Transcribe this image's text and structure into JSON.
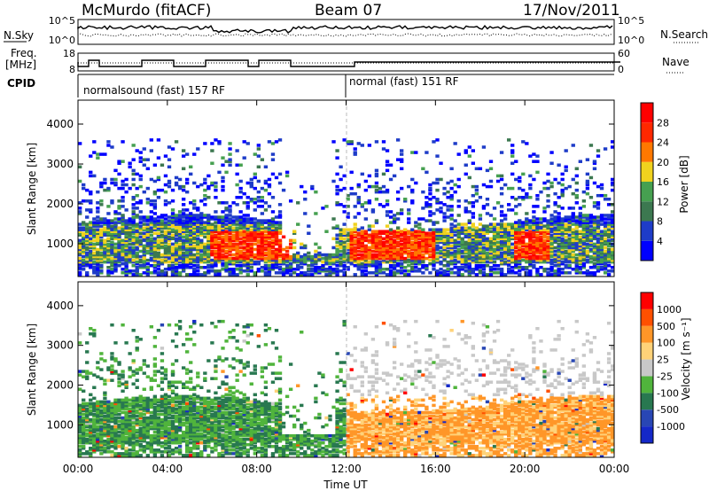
{
  "header": {
    "station": "McMurdo (fitACF)",
    "beam": "Beam 07",
    "date": "17/Nov/2011"
  },
  "top_panels": {
    "nsky_label": "N.Sky",
    "nsearch_label": "N.Search",
    "freq_label_line1": "Freq.",
    "freq_label_line2": "[MHz]",
    "nave_label": "Nave",
    "cpid_label": "CPID",
    "nsky_ticks": [
      "10^5",
      "10^0"
    ],
    "nsearch_ticks": [
      "10^5",
      "10^0"
    ],
    "freq_ticks": [
      "18",
      "8"
    ],
    "nave_ticks": [
      "60",
      "0"
    ],
    "cpid_segments": [
      "normalsound (fast) 157 RF",
      "normal (fast) 151 RF"
    ]
  },
  "chart_data": [
    {
      "type": "heatmap",
      "name": "power",
      "ylabel": "Slant Range [km]",
      "ylim": [
        180,
        4600
      ],
      "yticks": [
        1000,
        2000,
        3000,
        4000
      ],
      "x_hours": [
        0,
        24
      ],
      "xtick_labels": [
        "00:00",
        "04:00",
        "08:00",
        "12:00",
        "16:00",
        "20:00",
        "00:00"
      ],
      "colorbar": {
        "label": "Power [dB]",
        "ticks": [
          4,
          8,
          12,
          16,
          20,
          24,
          28
        ],
        "colors": [
          "#0000ff",
          "#1e3cc8",
          "#3c7850",
          "#46a050",
          "#f0d21e",
          "#ff7800",
          "#ff2800",
          "#ff0000"
        ]
      }
    },
    {
      "type": "heatmap",
      "name": "velocity",
      "xlabel": "Time UT",
      "ylabel": "Slant Range [km]",
      "ylim": [
        180,
        4600
      ],
      "yticks": [
        1000,
        2000,
        3000,
        4000
      ],
      "x_hours": [
        0,
        24
      ],
      "xtick_labels": [
        "00:00",
        "04:00",
        "08:00",
        "12:00",
        "16:00",
        "20:00",
        "00:00"
      ],
      "colorbar": {
        "label": "Velocity [m s⁻¹]",
        "ticks": [
          "1000",
          "500",
          "100",
          "25",
          "-25",
          "-100",
          "-500",
          "-1000"
        ],
        "colors": [
          "#1428c8",
          "#2846b4",
          "#287850",
          "#50b43c",
          "#c8c8c8",
          "#ffd278",
          "#ff9628",
          "#ff5000",
          "#ff0000"
        ]
      }
    }
  ]
}
